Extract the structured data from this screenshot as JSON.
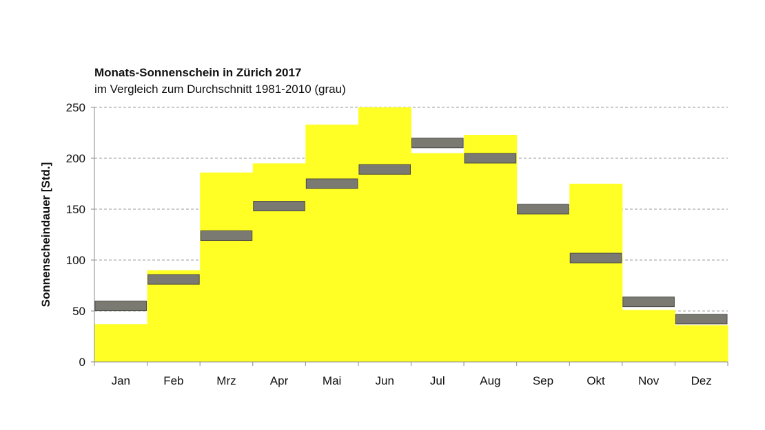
{
  "chart_data": {
    "type": "bar",
    "title": "Monats-Sonnenschein in Zürich 2017",
    "subtitle": "im Vergleich zum Durchschnitt 1981-2010 (grau)",
    "ylabel": "Sonnenscheindauer [Std.]",
    "xlabel": "",
    "ylim": [
      0,
      250
    ],
    "yticks": [
      0,
      50,
      100,
      150,
      200,
      250
    ],
    "grid": true,
    "categories": [
      "Jan",
      "Feb",
      "Mrz",
      "Apr",
      "Mai",
      "Jun",
      "Jul",
      "Aug",
      "Sep",
      "Okt",
      "Nov",
      "Dez"
    ],
    "series": [
      {
        "values": [
          37,
          90,
          186,
          195,
          233,
          250,
          205,
          223,
          147,
          175,
          51,
          36
        ]
      },
      {
        "values": [
          55,
          81,
          124,
          153,
          175,
          189,
          215,
          200,
          150,
          102,
          59,
          42
        ]
      }
    ],
    "colors": {
      "bars": "#ffff26",
      "average_fill": "#7a7a72",
      "average_stroke": "#4a4a44",
      "grid": "#999999",
      "axis": "#888888"
    }
  }
}
